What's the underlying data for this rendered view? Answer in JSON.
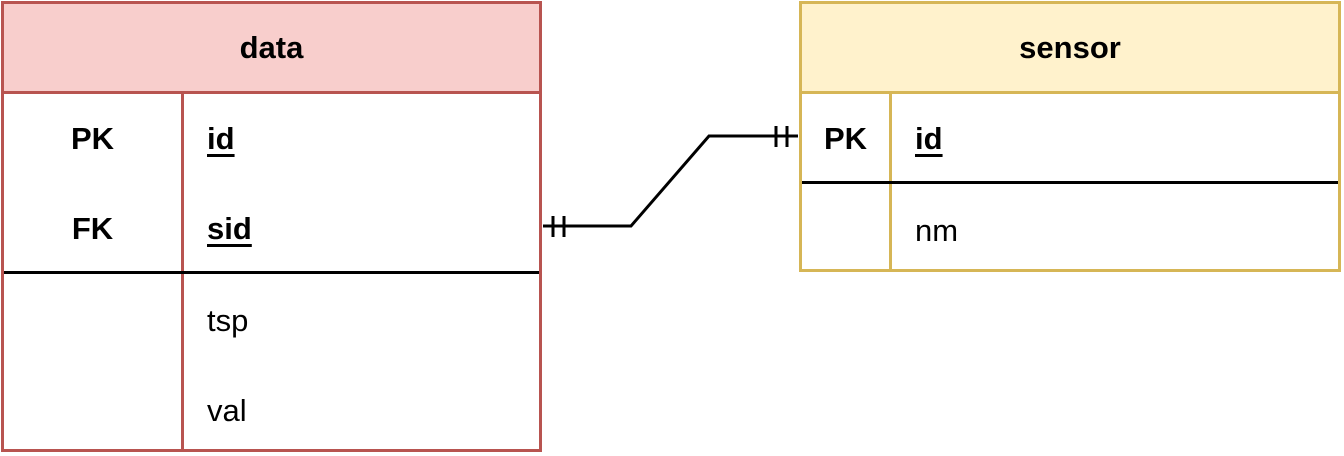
{
  "entities": {
    "data": {
      "title": "data",
      "fill": "#f8cecc",
      "stroke": "#b85450",
      "rows": [
        {
          "key": "PK",
          "attr": "id"
        },
        {
          "key": "FK",
          "attr": "sid"
        },
        {
          "key": "",
          "attr": "tsp"
        },
        {
          "key": "",
          "attr": "val"
        }
      ]
    },
    "sensor": {
      "title": "sensor",
      "fill": "#fff2cc",
      "stroke": "#d6b656",
      "rows": [
        {
          "key": "PK",
          "attr": "id"
        },
        {
          "key": "",
          "attr": "nm"
        }
      ]
    }
  },
  "relationship": {
    "from": "data.sid",
    "to": "sensor.id",
    "from_cardinality": "exactly-one",
    "to_cardinality": "exactly-one",
    "line_color": "#000000"
  }
}
